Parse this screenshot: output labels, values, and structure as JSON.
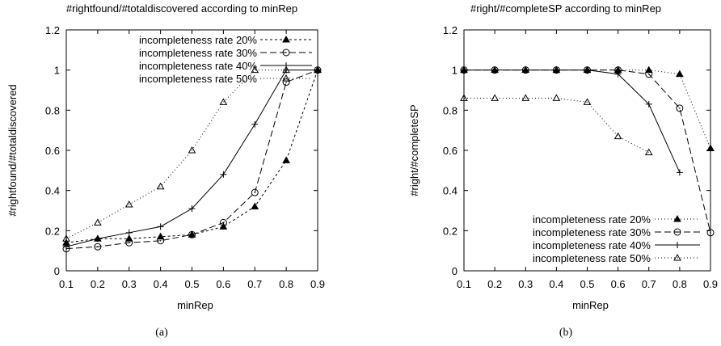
{
  "chart_data": [
    {
      "type": "line",
      "title": "#rightfound/#totaldiscovered according to minRep",
      "xlabel": "minRep",
      "ylabel": "#rightfound/#totaldiscovered",
      "caption": "(a)",
      "xlim": [
        0.1,
        0.9
      ],
      "ylim": [
        0,
        1.2
      ],
      "xticks": [
        "0.1",
        "0.2",
        "0.3",
        "0.4",
        "0.5",
        "0.6",
        "0.7",
        "0.8",
        "0.9"
      ],
      "yticks": [
        "0",
        "0.2",
        "0.4",
        "0.6",
        "0.8",
        "1",
        "1.2"
      ],
      "grid": false,
      "legend_position": "top-left",
      "series": [
        {
          "name": "incompleteness rate 20%",
          "marker": "filled-triangle",
          "dash": "3,3",
          "x": [
            0.1,
            0.2,
            0.3,
            0.4,
            0.5,
            0.6,
            0.7,
            0.8,
            0.9
          ],
          "values": [
            0.14,
            0.16,
            0.16,
            0.17,
            0.18,
            0.22,
            0.32,
            0.55,
            1.0
          ]
        },
        {
          "name": "incompleteness rate 30%",
          "marker": "circle",
          "dash": "8,4",
          "x": [
            0.1,
            0.2,
            0.3,
            0.4,
            0.5,
            0.6,
            0.7,
            0.8,
            0.9
          ],
          "values": [
            0.11,
            0.12,
            0.14,
            0.15,
            0.18,
            0.24,
            0.39,
            0.94,
            1.0
          ]
        },
        {
          "name": "incompleteness rate 40%",
          "marker": "plus",
          "dash": "",
          "x": [
            0.1,
            0.2,
            0.3,
            0.4,
            0.5,
            0.6,
            0.7,
            0.8,
            0.9
          ],
          "values": [
            0.12,
            0.16,
            0.19,
            0.22,
            0.31,
            0.48,
            0.73,
            1.0,
            1.0
          ]
        },
        {
          "name": "incompleteness rate 50%",
          "marker": "open-triangle",
          "dash": "1,3",
          "x": [
            0.1,
            0.2,
            0.3,
            0.4,
            0.5,
            0.6,
            0.7,
            0.8,
            0.9
          ],
          "values": [
            0.16,
            0.24,
            0.33,
            0.42,
            0.6,
            0.84,
            1.0,
            1.0,
            1.0
          ]
        }
      ]
    },
    {
      "type": "line",
      "title": "#right/#completeSP according to minRep",
      "xlabel": "minRep",
      "ylabel": "#right/#completeSP",
      "caption": "(b)",
      "xlim": [
        0.1,
        0.9
      ],
      "ylim": [
        0,
        1.2
      ],
      "xticks": [
        "0.1",
        "0.2",
        "0.3",
        "0.4",
        "0.5",
        "0.6",
        "0.7",
        "0.8",
        "0.9"
      ],
      "yticks": [
        "0",
        "0.2",
        "0.4",
        "0.6",
        "0.8",
        "1",
        "1.2"
      ],
      "grid": false,
      "legend_position": "bottom-right",
      "series": [
        {
          "name": "incompleteness rate 20%",
          "marker": "filled-triangle",
          "dash": "1,3",
          "x": [
            0.1,
            0.2,
            0.3,
            0.4,
            0.5,
            0.6,
            0.7,
            0.8,
            0.9
          ],
          "values": [
            1.0,
            1.0,
            1.0,
            1.0,
            1.0,
            1.0,
            1.0,
            0.98,
            0.61
          ]
        },
        {
          "name": "incompleteness rate 30%",
          "marker": "circle",
          "dash": "8,4",
          "x": [
            0.1,
            0.2,
            0.3,
            0.4,
            0.5,
            0.6,
            0.7,
            0.8,
            0.9
          ],
          "values": [
            1.0,
            1.0,
            1.0,
            1.0,
            1.0,
            1.0,
            0.98,
            0.81,
            0.19
          ]
        },
        {
          "name": "incompleteness rate 40%",
          "marker": "plus",
          "dash": "",
          "x": [
            0.1,
            0.2,
            0.3,
            0.4,
            0.5,
            0.6,
            0.7,
            0.8
          ],
          "values": [
            1.0,
            1.0,
            1.0,
            1.0,
            1.0,
            0.98,
            0.83,
            0.49
          ]
        },
        {
          "name": "incompleteness rate 50%",
          "marker": "open-triangle",
          "dash": "1,3",
          "x": [
            0.1,
            0.2,
            0.3,
            0.4,
            0.5,
            0.6,
            0.7
          ],
          "values": [
            0.86,
            0.86,
            0.86,
            0.86,
            0.84,
            0.67,
            0.59
          ]
        }
      ]
    }
  ]
}
